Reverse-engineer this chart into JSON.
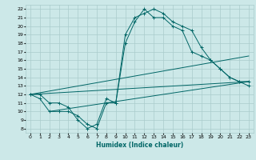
{
  "title": "",
  "xlabel": "Humidex (Indice chaleur)",
  "bg_color": "#cce8e8",
  "grid_color": "#aacccc",
  "line_color": "#006666",
  "xlim": [
    -0.5,
    23.5
  ],
  "ylim": [
    7.5,
    22.5
  ],
  "xticks": [
    0,
    1,
    2,
    3,
    4,
    5,
    6,
    7,
    8,
    9,
    10,
    11,
    12,
    13,
    14,
    15,
    16,
    17,
    18,
    19,
    20,
    21,
    22,
    23
  ],
  "yticks": [
    8,
    9,
    10,
    11,
    12,
    13,
    14,
    15,
    16,
    17,
    18,
    19,
    20,
    21,
    22
  ],
  "curve1_x": [
    0,
    1,
    2,
    3,
    4,
    5,
    6,
    7,
    8,
    9,
    10,
    11,
    12,
    13,
    14,
    15,
    16,
    17,
    18,
    19,
    20,
    21,
    22,
    23
  ],
  "curve1_y": [
    12,
    11.5,
    10,
    10,
    10,
    9.5,
    8.5,
    8,
    11,
    11,
    19,
    21,
    21.5,
    22,
    21.5,
    20.5,
    20,
    19.5,
    17.5,
    16,
    15,
    14,
    13.5,
    13.5
  ],
  "curve2_x": [
    0,
    1,
    2,
    3,
    4,
    5,
    6,
    7,
    8,
    9,
    10,
    11,
    12,
    13,
    14,
    15,
    16,
    17,
    18,
    19,
    20,
    21,
    22,
    23
  ],
  "curve2_y": [
    12,
    12,
    11,
    11,
    10.5,
    9,
    8,
    8.5,
    11.5,
    11,
    18,
    20.5,
    22,
    21,
    21,
    20,
    19.5,
    17,
    16.5,
    16,
    15,
    14,
    13.5,
    13
  ],
  "line1_x": [
    0,
    23
  ],
  "line1_y": [
    12.0,
    16.5
  ],
  "line2_x": [
    0,
    23
  ],
  "line2_y": [
    12.0,
    13.5
  ],
  "line3_x": [
    2,
    23
  ],
  "line3_y": [
    10.0,
    13.5
  ],
  "marker": "+"
}
